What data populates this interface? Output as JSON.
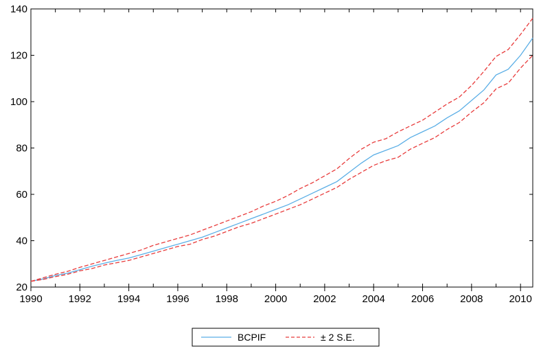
{
  "chart_data": {
    "type": "line",
    "title": "",
    "xlabel": "",
    "ylabel": "",
    "xlim": [
      1990.0,
      2010.5
    ],
    "ylim": [
      20,
      140
    ],
    "x_ticks": [
      "1990",
      "1992",
      "1994",
      "1996",
      "1998",
      "2000",
      "2002",
      "2004",
      "2006",
      "2008",
      "2010"
    ],
    "y_ticks": [
      "20",
      "40",
      "60",
      "80",
      "100",
      "120",
      "140"
    ],
    "grid": false,
    "legend_position": "bottom-center",
    "x": [
      1990.0,
      1990.5,
      1991.0,
      1991.5,
      1992.0,
      1992.5,
      1993.0,
      1993.5,
      1994.0,
      1994.5,
      1995.0,
      1995.5,
      1996.0,
      1996.5,
      1997.0,
      1997.5,
      1998.0,
      1998.5,
      1999.0,
      1999.5,
      2000.0,
      2000.5,
      2001.0,
      2001.5,
      2002.0,
      2002.5,
      2003.0,
      2003.5,
      2004.0,
      2004.5,
      2005.0,
      2005.5,
      2006.0,
      2006.5,
      2007.0,
      2007.5,
      2008.0,
      2008.5,
      2009.0,
      2009.5,
      2010.0,
      2010.5
    ],
    "series": [
      {
        "name": "BCPIF",
        "color": "#5aaee6",
        "style": "solid",
        "values": [
          22.5,
          23.5,
          25.0,
          26.0,
          27.5,
          29.0,
          30.3,
          31.5,
          32.5,
          34.0,
          35.5,
          37.0,
          38.5,
          40.0,
          41.5,
          43.5,
          45.5,
          47.5,
          49.5,
          51.5,
          53.5,
          55.5,
          58.0,
          60.5,
          63.0,
          65.5,
          69.5,
          73.5,
          77.0,
          79.0,
          81.0,
          84.5,
          87.0,
          89.5,
          93.0,
          96.0,
          100.5,
          105.0,
          111.5,
          114.0,
          120.0,
          127.5
        ]
      },
      {
        "name": "± 2 S.E.",
        "color": "#e83a3a",
        "style": "dashed",
        "legend": true,
        "values": [
          22.5,
          24.0,
          25.5,
          26.8,
          28.5,
          30.0,
          31.5,
          33.0,
          34.5,
          36.0,
          38.0,
          39.5,
          41.0,
          42.5,
          44.5,
          46.5,
          48.5,
          50.5,
          52.5,
          55.0,
          57.0,
          59.5,
          62.5,
          65.0,
          68.0,
          71.0,
          75.5,
          79.5,
          82.5,
          84.0,
          87.0,
          89.5,
          92.0,
          95.5,
          99.0,
          102.0,
          107.0,
          113.0,
          119.5,
          122.5,
          129.0,
          136.0
        ]
      },
      {
        "name": "",
        "color": "#e83a3a",
        "style": "dashed",
        "legend": false,
        "values": [
          22.5,
          23.3,
          24.5,
          25.5,
          27.0,
          28.0,
          29.5,
          30.5,
          31.5,
          33.0,
          34.5,
          36.0,
          37.5,
          38.5,
          40.5,
          42.0,
          44.0,
          46.0,
          47.5,
          49.5,
          51.5,
          53.5,
          55.5,
          58.0,
          60.5,
          63.0,
          66.5,
          69.5,
          72.5,
          74.5,
          76.0,
          79.5,
          82.0,
          84.5,
          88.0,
          91.0,
          95.5,
          99.5,
          105.5,
          108.0,
          114.5,
          120.0
        ]
      }
    ]
  }
}
